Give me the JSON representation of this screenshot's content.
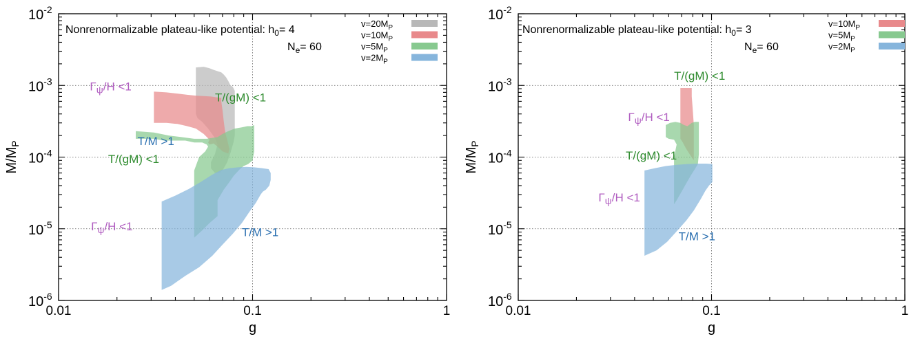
{
  "chart_data": [
    {
      "type": "area",
      "title": "Nonrenormalizable plateau-like potential: h",
      "title_sub": "0",
      "title_suffix": "= 4",
      "ne_label": "N",
      "ne_sub": "e",
      "ne_suffix": "= 60",
      "xlabel": "g",
      "ylabel": "M/M",
      "ylabel_sub": "P",
      "xscale": "log",
      "yscale": "log",
      "xlim": [
        0.01,
        1
      ],
      "ylim": [
        1e-06,
        0.01
      ],
      "grid": "dotted at g=0.1 and every decade of M/M_P",
      "legend_position": "top-right",
      "x_ticks": [
        {
          "value": 0.01,
          "label": "0.01"
        },
        {
          "value": 0.1,
          "label": "0.1"
        },
        {
          "value": 1,
          "label": "1"
        }
      ],
      "y_ticks": [
        {
          "value": 1e-06,
          "base": "10",
          "exp": "-6"
        },
        {
          "value": 1e-05,
          "base": "10",
          "exp": "-5"
        },
        {
          "value": 0.0001,
          "base": "10",
          "exp": "-4"
        },
        {
          "value": 0.001,
          "base": "10",
          "exp": "-3"
        },
        {
          "value": 0.01,
          "base": "10",
          "exp": "-2"
        }
      ],
      "series": [
        {
          "name": "v=20M",
          "name_sub": "P",
          "color": "#b8b8b8",
          "points": [
            [
              0.051,
              0.00178
            ],
            [
              0.056,
              0.00182
            ],
            [
              0.06,
              0.00174
            ],
            [
              0.063,
              0.00165
            ],
            [
              0.066,
              0.00158
            ],
            [
              0.069,
              0.00152
            ],
            [
              0.071,
              0.00142
            ],
            [
              0.073,
              0.0013
            ],
            [
              0.075,
              0.00115
            ],
            [
              0.077,
              0.001
            ],
            [
              0.079,
              0.00096
            ],
            [
              0.08,
              0.0009
            ],
            [
              0.081,
              0.00084
            ],
            [
              0.081,
              0.0007
            ],
            [
              0.081,
              0.00052
            ],
            [
              0.081,
              0.0004
            ],
            [
              0.081,
              0.0003
            ],
            [
              0.081,
              0.0002
            ],
            [
              0.08,
              0.000165
            ],
            [
              0.077,
              0.000115
            ],
            [
              0.074,
              8.5e-05
            ],
            [
              0.07,
              6.5e-05
            ],
            [
              0.067,
              6e-05
            ],
            [
              0.064,
              6e-05
            ],
            [
              0.061,
              7e-05
            ],
            [
              0.061,
              8.5e-05
            ],
            [
              0.064,
              0.00011
            ],
            [
              0.066,
              0.00015
            ],
            [
              0.064,
              0.000185
            ],
            [
              0.059,
              0.00025
            ],
            [
              0.055,
              0.00031
            ],
            [
              0.052,
              0.00035
            ],
            [
              0.051,
              0.0004
            ],
            [
              0.051,
              0.0007
            ],
            [
              0.051,
              0.0012
            ]
          ]
        },
        {
          "name": "v=10M",
          "name_sub": "P",
          "color": "#e8898b",
          "points": [
            [
              0.031,
              0.00082
            ],
            [
              0.036,
              0.0008
            ],
            [
              0.041,
              0.00077
            ],
            [
              0.046,
              0.00074
            ],
            [
              0.051,
              0.00072
            ],
            [
              0.056,
              0.00071
            ],
            [
              0.061,
              0.0007
            ],
            [
              0.066,
              0.00068
            ],
            [
              0.069,
              0.00067
            ],
            [
              0.069,
              0.0006
            ],
            [
              0.07,
              0.00045
            ],
            [
              0.071,
              0.00032
            ],
            [
              0.072,
              0.00024
            ],
            [
              0.073,
              0.0002
            ],
            [
              0.074,
              0.000175
            ],
            [
              0.075,
              0.00015
            ],
            [
              0.076,
              0.00013
            ],
            [
              0.075,
              0.000112
            ],
            [
              0.07,
              0.00012
            ],
            [
              0.066,
              0.00014
            ],
            [
              0.063,
              0.000155
            ],
            [
              0.06,
              0.00015
            ],
            [
              0.059,
              0.00016
            ],
            [
              0.06,
              0.000175
            ],
            [
              0.056,
              0.00021
            ],
            [
              0.051,
              0.00025
            ],
            [
              0.046,
              0.00027
            ],
            [
              0.041,
              0.00029
            ],
            [
              0.036,
              0.0003
            ],
            [
              0.031,
              0.0003
            ]
          ]
        },
        {
          "name": "v=5M",
          "name_sub": "P",
          "color": "#87c98f",
          "points": [
            [
              0.025,
              0.00023
            ],
            [
              0.031,
              0.00022
            ],
            [
              0.037,
              0.0002
            ],
            [
              0.043,
              0.00019
            ],
            [
              0.05,
              0.00018
            ],
            [
              0.058,
              0.00018
            ],
            [
              0.066,
              0.00019
            ],
            [
              0.07,
              0.00021
            ],
            [
              0.075,
              0.00023
            ],
            [
              0.081,
              0.00025
            ],
            [
              0.088,
              0.00026
            ],
            [
              0.094,
              0.00027
            ],
            [
              0.099,
              0.00027
            ],
            [
              0.102,
              0.00028
            ],
            [
              0.102,
              0.0002
            ],
            [
              0.102,
              0.00012
            ],
            [
              0.1,
              9e-05
            ],
            [
              0.095,
              8e-05
            ],
            [
              0.09,
              7.5e-05
            ],
            [
              0.086,
              6.8e-05
            ],
            [
              0.08,
              5.5e-05
            ],
            [
              0.076,
              4.5e-05
            ],
            [
              0.071,
              3.5e-05
            ],
            [
              0.066,
              2.5e-05
            ],
            [
              0.066,
              1.5e-05
            ],
            [
              0.06,
              1.2e-05
            ],
            [
              0.055,
              9.5e-06
            ],
            [
              0.05,
              7.5e-06
            ],
            [
              0.05,
              2.5e-05
            ],
            [
              0.05,
              4.5e-05
            ],
            [
              0.05,
              6.5e-05
            ],
            [
              0.053,
              0.0001
            ],
            [
              0.057,
              0.00012
            ],
            [
              0.059,
              0.00014
            ],
            [
              0.058,
              0.00015
            ],
            [
              0.055,
              0.00016
            ],
            [
              0.05,
              0.00016
            ],
            [
              0.045,
              0.00017
            ],
            [
              0.04,
              0.00017
            ],
            [
              0.035,
              0.00017
            ],
            [
              0.031,
              0.00018
            ],
            [
              0.025,
              0.00018
            ]
          ]
        },
        {
          "name": "v=2M",
          "name_sub": "P",
          "color": "#86b5dc",
          "points": [
            [
              0.034,
              2.4e-05
            ],
            [
              0.04,
              2.9e-05
            ],
            [
              0.047,
              3.6e-05
            ],
            [
              0.054,
              4.5e-05
            ],
            [
              0.062,
              5.7e-05
            ],
            [
              0.069,
              6.6e-05
            ],
            [
              0.076,
              7e-05
            ],
            [
              0.084,
              7.2e-05
            ],
            [
              0.093,
              7.3e-05
            ],
            [
              0.102,
              7.2e-05
            ],
            [
              0.112,
              7e-05
            ],
            [
              0.121,
              6.8e-05
            ],
            [
              0.124,
              6e-05
            ],
            [
              0.124,
              4.8e-05
            ],
            [
              0.122,
              4e-05
            ],
            [
              0.117,
              3.5e-05
            ],
            [
              0.113,
              3.3e-05
            ],
            [
              0.11,
              3e-05
            ],
            [
              0.104,
              2.3e-05
            ],
            [
              0.096,
              1.7e-05
            ],
            [
              0.088,
              1.2e-05
            ],
            [
              0.079,
              8.5e-06
            ],
            [
              0.07,
              6e-06
            ],
            [
              0.062,
              4.2e-06
            ],
            [
              0.053,
              2.9e-06
            ],
            [
              0.045,
              2.2e-06
            ],
            [
              0.038,
              1.6e-06
            ],
            [
              0.034,
              1.4e-06
            ],
            [
              0.034,
              6e-06
            ]
          ]
        }
      ],
      "annotations": [
        {
          "label": "T/(gM) <1",
          "color": "#2e8b2e",
          "g": 0.064,
          "m": 0.0006
        },
        {
          "label": "Γ",
          "sub": "ψ",
          "suffix": "/H <1",
          "color": "#b05cc0",
          "g": 0.0145,
          "m": 0.00085
        },
        {
          "label": "T/M >1",
          "color": "#2a6fb0",
          "g": 0.0255,
          "m": 0.000148
        },
        {
          "label": "T/(gM) <1",
          "color": "#2e8b2e",
          "g": 0.018,
          "m": 8.3e-05
        },
        {
          "label": "Γ",
          "sub": "ψ",
          "suffix": "/H <1",
          "color": "#b05cc0",
          "g": 0.0147,
          "m": 9.5e-06
        },
        {
          "label": "T/M >1",
          "color": "#2a6fb0",
          "g": 0.088,
          "m": 7.9e-06
        }
      ]
    },
    {
      "type": "area",
      "title": "Nonrenormalizable plateau-like potential: h",
      "title_sub": "0",
      "title_suffix": "= 3",
      "ne_label": "N",
      "ne_sub": "e",
      "ne_suffix": "= 60",
      "xlabel": "g",
      "ylabel": "M/M",
      "ylabel_sub": "P",
      "xscale": "log",
      "yscale": "log",
      "xlim": [
        0.01,
        1
      ],
      "ylim": [
        1e-06,
        0.01
      ],
      "grid": "dotted at g=0.1 and every decade of M/M_P",
      "legend_position": "top-right",
      "x_ticks": [
        {
          "value": 0.01,
          "label": "0.01"
        },
        {
          "value": 0.1,
          "label": "0.1"
        },
        {
          "value": 1,
          "label": "1"
        }
      ],
      "y_ticks": [
        {
          "value": 1e-06,
          "base": "10",
          "exp": "-6"
        },
        {
          "value": 1e-05,
          "base": "10",
          "exp": "-5"
        },
        {
          "value": 0.0001,
          "base": "10",
          "exp": "-4"
        },
        {
          "value": 0.001,
          "base": "10",
          "exp": "-3"
        },
        {
          "value": 0.01,
          "base": "10",
          "exp": "-2"
        }
      ],
      "series": [
        {
          "name": "v=10M",
          "name_sub": "P",
          "color": "#e8898b",
          "points": [
            [
              0.069,
              0.00092
            ],
            [
              0.073,
              0.00092
            ],
            [
              0.079,
              0.00092
            ],
            [
              0.079,
              0.0007
            ],
            [
              0.08,
              0.00045
            ],
            [
              0.081,
              0.00028
            ],
            [
              0.081,
              0.00015
            ],
            [
              0.081,
              9e-05
            ],
            [
              0.077,
              0.00011
            ],
            [
              0.074,
              0.00013
            ],
            [
              0.071,
              0.00016
            ],
            [
              0.069,
              0.00018
            ],
            [
              0.069,
              0.0003
            ],
            [
              0.069,
              0.0006
            ]
          ]
        },
        {
          "name": "v=5M",
          "name_sub": "P",
          "color": "#87c98f",
          "points": [
            [
              0.058,
              0.00028
            ],
            [
              0.061,
              0.0003
            ],
            [
              0.065,
              0.00031
            ],
            [
              0.069,
              0.0003
            ],
            [
              0.072,
              0.00028
            ],
            [
              0.075,
              0.00027
            ],
            [
              0.079,
              0.0003
            ],
            [
              0.082,
              0.00031
            ],
            [
              0.086,
              0.00031
            ],
            [
              0.086,
              0.00022
            ],
            [
              0.086,
              0.00011
            ],
            [
              0.085,
              8e-05
            ],
            [
              0.082,
              6.8e-05
            ],
            [
              0.078,
              5.5e-05
            ],
            [
              0.074,
              4.3e-05
            ],
            [
              0.07,
              3.3e-05
            ],
            [
              0.066,
              2.5e-05
            ],
            [
              0.064,
              2.2e-05
            ],
            [
              0.064,
              3.5e-05
            ],
            [
              0.064,
              6e-05
            ],
            [
              0.064,
              0.0001
            ],
            [
              0.066,
              0.00015
            ],
            [
              0.064,
              0.000175
            ],
            [
              0.06,
              0.00018
            ],
            [
              0.058,
              0.00019
            ]
          ]
        },
        {
          "name": "v=2M",
          "name_sub": "P",
          "color": "#86b5dc",
          "points": [
            [
              0.045,
              6.5e-05
            ],
            [
              0.051,
              7e-05
            ],
            [
              0.058,
              7.5e-05
            ],
            [
              0.066,
              7.8e-05
            ],
            [
              0.075,
              8e-05
            ],
            [
              0.084,
              8.1e-05
            ],
            [
              0.094,
              8.1e-05
            ],
            [
              0.101,
              8e-05
            ],
            [
              0.101,
              6e-05
            ],
            [
              0.101,
              4.5e-05
            ],
            [
              0.097,
              4e-05
            ],
            [
              0.093,
              3.4e-05
            ],
            [
              0.088,
              2.6e-05
            ],
            [
              0.081,
              1.8e-05
            ],
            [
              0.074,
              1.3e-05
            ],
            [
              0.066,
              9.2e-06
            ],
            [
              0.059,
              6.6e-06
            ],
            [
              0.052,
              5e-06
            ],
            [
              0.045,
              4.2e-06
            ],
            [
              0.045,
              2e-05
            ]
          ]
        }
      ],
      "annotations": [
        {
          "label": "T/(gM) <1",
          "color": "#2e8b2e",
          "g": 0.064,
          "m": 0.0012
        },
        {
          "label": "Γ",
          "sub": "ψ",
          "suffix": "/H <1",
          "color": "#b05cc0",
          "g": 0.037,
          "m": 0.00032
        },
        {
          "label": "T/(gM) <1",
          "color": "#2e8b2e",
          "g": 0.036,
          "m": 9.3e-05
        },
        {
          "label": "Γ",
          "sub": "ψ",
          "suffix": "/H <1",
          "color": "#b05cc0",
          "g": 0.026,
          "m": 2.4e-05
        },
        {
          "label": "T/M >1",
          "color": "#2a6fb0",
          "g": 0.0675,
          "m": 6.9e-06
        }
      ]
    }
  ]
}
